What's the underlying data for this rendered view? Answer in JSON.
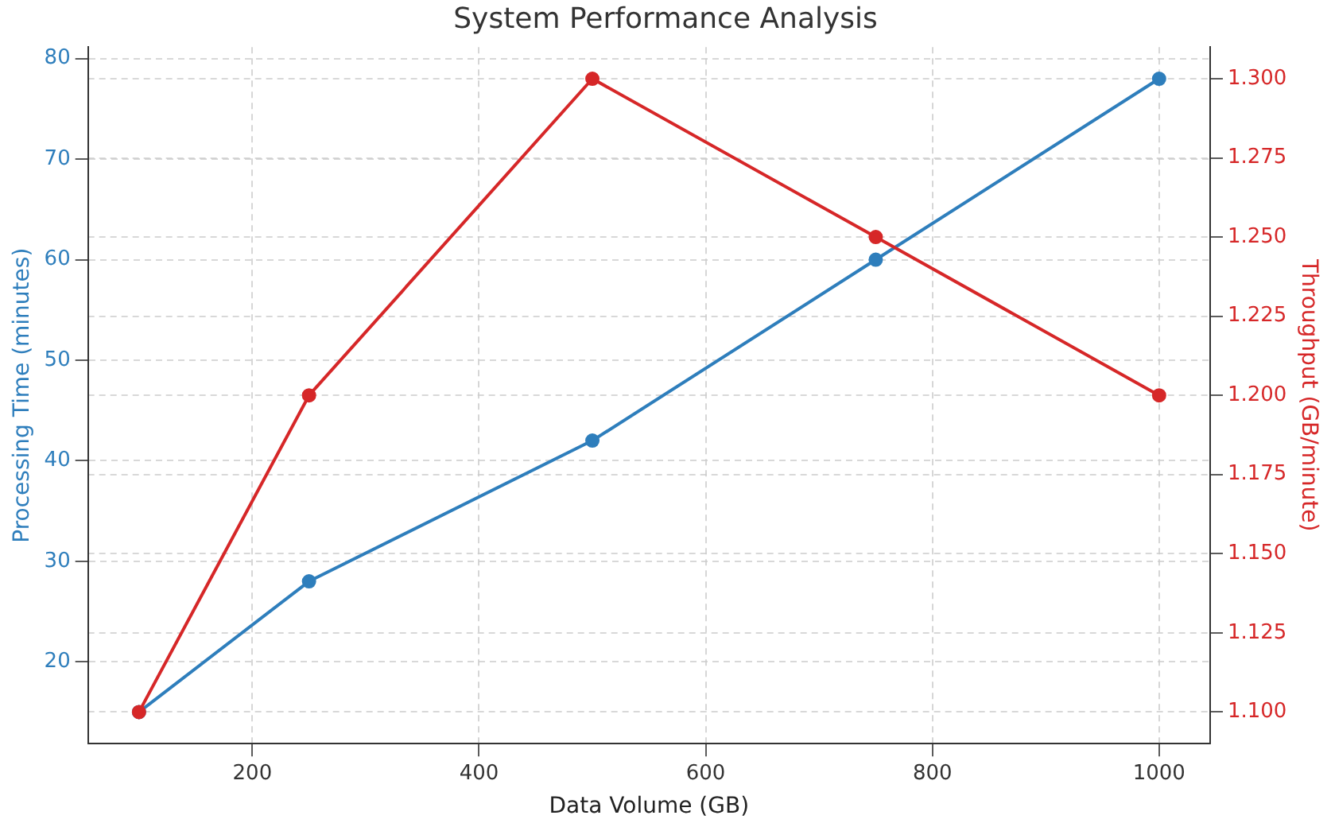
{
  "chart_data": {
    "type": "line",
    "title": "System Performance Analysis",
    "xlabel": "Data Volume (GB)",
    "ylabel": "Processing Time (minutes)",
    "y2label": "Throughput (GB/minute)",
    "x": [
      100,
      250,
      500,
      750,
      1000
    ],
    "series": [
      {
        "color": "#2e7ebc",
        "values": [
          15,
          28,
          42,
          60,
          78
        ]
      },
      {
        "color": "#d62728",
        "axis": "y2",
        "values": [
          1.1,
          1.2,
          1.3,
          1.25,
          1.2
        ]
      }
    ],
    "xlim": [
      55,
      1045
    ],
    "xticks": [
      200,
      400,
      600,
      800,
      1000
    ],
    "ylim": [
      11.85,
      81.15
    ],
    "yticks": [
      20,
      30,
      40,
      50,
      60,
      70,
      80
    ],
    "y2lim": [
      1.09,
      1.31
    ],
    "y2ticks": [
      {
        "value": 1.1,
        "label": "1.100"
      },
      {
        "value": 1.125,
        "label": "1.125"
      },
      {
        "value": 1.15,
        "label": "1.150"
      },
      {
        "value": 1.175,
        "label": "1.175"
      },
      {
        "value": 1.2,
        "label": "1.200"
      },
      {
        "value": 1.225,
        "label": "1.225"
      },
      {
        "value": 1.25,
        "label": "1.250"
      },
      {
        "value": 1.275,
        "label": "1.275"
      },
      {
        "value": 1.3,
        "label": "1.300"
      }
    ],
    "grid": true,
    "marker": "circle",
    "line_style": "solid"
  }
}
